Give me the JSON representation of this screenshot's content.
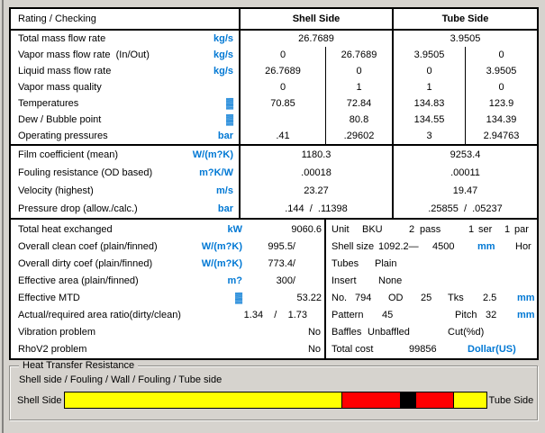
{
  "colors": {
    "unit_blue": "#0078d4",
    "background": "#d6d3ce",
    "table_bg": "#ffffff",
    "border": "#000000"
  },
  "header": {
    "title": "Rating / Checking",
    "shell": "Shell Side",
    "tube": "Tube Side"
  },
  "flows": {
    "rows": [
      {
        "label": "Total mass flow rate",
        "unit": "kg/s",
        "shell": "26.7689",
        "tube": "3.9505"
      },
      {
        "label": "Vapor mass flow rate  (In/Out)",
        "unit": "kg/s",
        "shell_in": "0",
        "shell_out": "26.7689",
        "tube_in": "3.9505",
        "tube_out": "0"
      },
      {
        "label": "Liquid mass flow rate",
        "unit": "kg/s",
        "shell_in": "26.7689",
        "shell_out": "0",
        "tube_in": "0",
        "tube_out": "3.9505"
      },
      {
        "label": "Vapor mass quality",
        "unit": "",
        "shell_in": "0",
        "shell_out": "1",
        "tube_in": "1",
        "tube_out": "0"
      },
      {
        "label": "Temperatures",
        "unit": "▓",
        "shell_in": "70.85",
        "shell_out": "72.84",
        "tube_in": "134.83",
        "tube_out": "123.9"
      },
      {
        "label": "Dew / Bubble point",
        "unit": "▓",
        "shell_in": "",
        "shell_out": "80.8",
        "tube_in": "134.55",
        "tube_out": "134.39"
      },
      {
        "label": "Operating pressures",
        "unit": "bar",
        "shell_in": ".41",
        "shell_out": ".29602",
        "tube_in": "3",
        "tube_out": "2.94763"
      }
    ]
  },
  "coefficients": {
    "rows": [
      {
        "label": "Film coefficient (mean)",
        "unit": "W/(m?K)",
        "shell": "1180.3",
        "tube": "9253.4"
      },
      {
        "label": "Fouling resistance (OD based)",
        "unit": "m?K/W",
        "shell": ".00018",
        "tube": ".00011"
      },
      {
        "label": "Velocity (highest)",
        "unit": "m/s",
        "shell": "23.27",
        "tube": "19.47"
      },
      {
        "label": "Pressure drop (allow./calc.)",
        "unit": "bar",
        "shell": ".144  /  .11398",
        "tube": ".25855  /  .05237"
      }
    ]
  },
  "summary": {
    "rows": [
      {
        "label": "Total heat exchanged",
        "unit": "kW",
        "value": "9060.6"
      },
      {
        "label": "Overall clean coef (plain/finned)",
        "unit": "W/(m?K)",
        "value": "995.5/"
      },
      {
        "label": "Overall dirty coef (plain/finned)",
        "unit": "W/(m?K)",
        "value": "773.4/"
      },
      {
        "label": "Effective area (plain/finned)",
        "unit": "m?",
        "value": "300/"
      },
      {
        "label": "Effective MTD",
        "unit": "▓",
        "value": "53.22"
      },
      {
        "label": "Actual/required area ratio(dirty/clean)",
        "unit": "",
        "value": "1.34    /    1.73"
      },
      {
        "label": "Vibration problem",
        "unit": "",
        "value": "No"
      },
      {
        "label": "RhoV2 problem",
        "unit": "",
        "value": "No"
      }
    ]
  },
  "unit_info": {
    "rows": [
      {
        "l1": "Unit",
        "v1": "BKU",
        "v2": "2",
        "l2": "pass",
        "v3": "1",
        "l3": "ser",
        "v4": "1",
        "l4": "par"
      },
      {
        "l1": "Shell size",
        "v1": "1092.2—",
        "v2": "4500",
        "u": "mm",
        "v3": "Hor"
      },
      {
        "l1": "Tubes",
        "v1": "Plain"
      },
      {
        "l1": "Insert",
        "v1": "None"
      },
      {
        "l1": "No.",
        "v1": "794",
        "l2": "OD",
        "v2": "25",
        "l3": "Tks",
        "v3": "2.5",
        "u": "mm"
      },
      {
        "l1": "Pattern",
        "v1": "45",
        "l2": "Pitch",
        "v2": "32",
        "u": "mm"
      },
      {
        "l1": "Baffles",
        "v1": "Unbaffled",
        "l2": "Cut(%d)"
      },
      {
        "l1": "Total cost",
        "v1": "99856",
        "u": "Dollar(US)"
      }
    ]
  },
  "resistance": {
    "title": "Heat Transfer Resistance",
    "subtitle": "Shell side / Fouling / Wall / Fouling / Tube side",
    "left_label": "Shell Side",
    "right_label": "Tube Side",
    "segments": [
      {
        "name": "shell-side-film",
        "color": "#ffff00",
        "percent": 65.8
      },
      {
        "name": "shell-fouling",
        "color": "#ff0000",
        "percent": 13.7
      },
      {
        "name": "wall",
        "color": "#000000",
        "percent": 3.8
      },
      {
        "name": "tube-fouling",
        "color": "#ff0000",
        "percent": 8.8
      },
      {
        "name": "tube-side-film",
        "color": "#ffff00",
        "percent": 7.9
      }
    ]
  }
}
